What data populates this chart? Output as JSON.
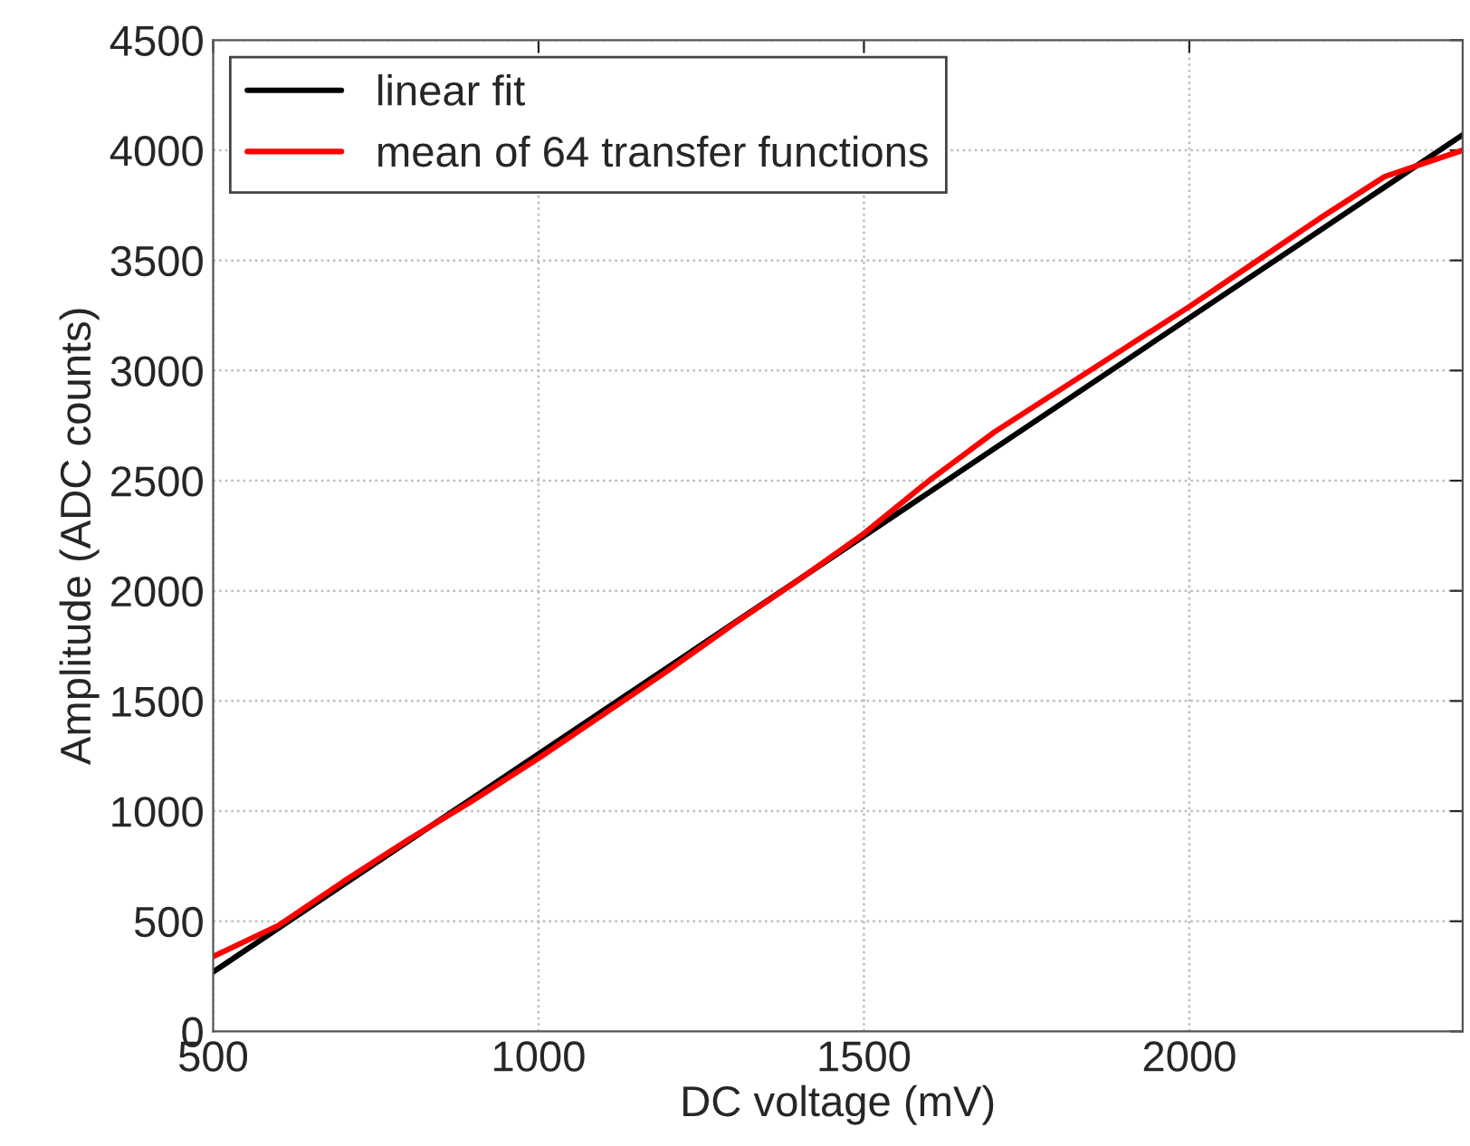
{
  "chart_data": {
    "type": "line",
    "xlabel": "DC voltage (mV)",
    "ylabel": "Amplitude (ADC counts)",
    "xlim": [
      500,
      2420
    ],
    "ylim": [
      0,
      4500
    ],
    "xticks": [
      500,
      1000,
      1500,
      2000
    ],
    "yticks": [
      0,
      500,
      1000,
      1500,
      2000,
      2500,
      3000,
      3500,
      4000,
      4500
    ],
    "grid": true,
    "legend": "top left",
    "line_style": "solid",
    "marker": "none",
    "series": [
      {
        "name": "linear fit",
        "color": "#000000",
        "x": [
          500,
          2420
        ],
        "values": [
          270,
          4070
        ]
      },
      {
        "name": "mean of 64 transfer functions",
        "color": "#ff0000",
        "x": [
          500,
          600,
          700,
          800,
          900,
          1000,
          1100,
          1200,
          1300,
          1400,
          1500,
          1600,
          1700,
          1800,
          1900,
          2000,
          2100,
          2200,
          2300,
          2420
        ],
        "values": [
          340,
          480,
          680,
          870,
          1050,
          1240,
          1440,
          1640,
          1850,
          2050,
          2260,
          2500,
          2720,
          2910,
          3100,
          3290,
          3490,
          3690,
          3880,
          4000
        ]
      }
    ]
  }
}
